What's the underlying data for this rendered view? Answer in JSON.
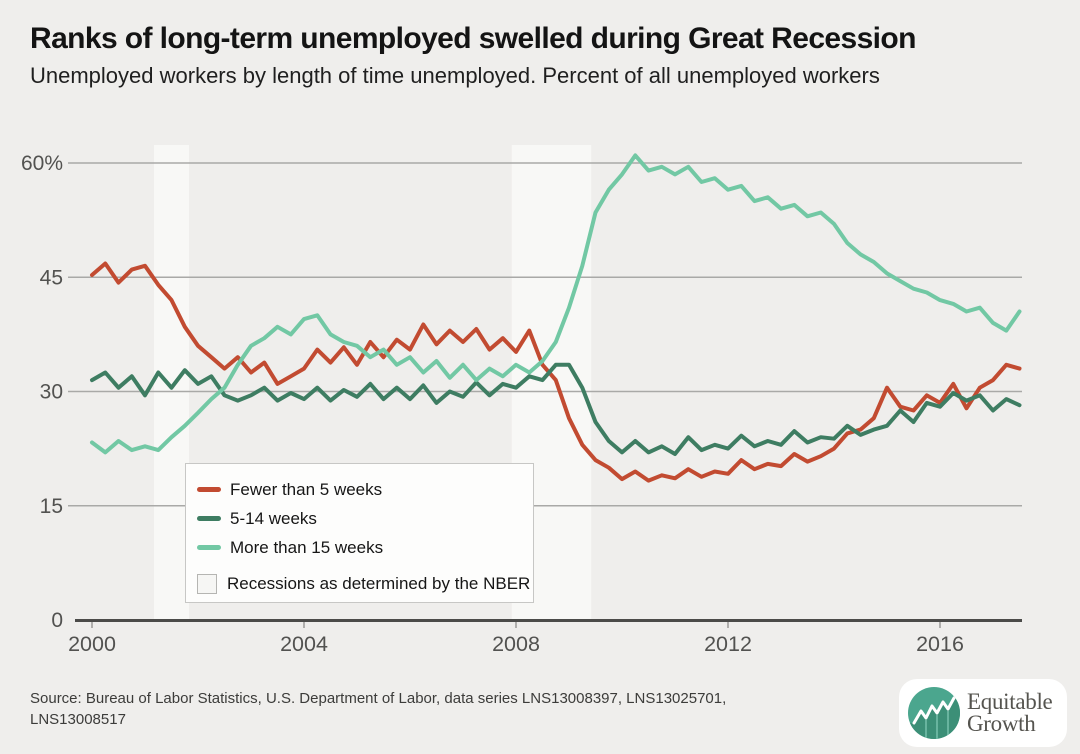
{
  "header": {
    "title": "Ranks of long-term unemployed swelled during Great Recession",
    "subtitle": "Unemployed workers by length of time unemployed. Percent of all unemployed workers"
  },
  "chart_data": {
    "type": "line",
    "title": "Ranks of long-term unemployed swelled during Great Recession",
    "subtitle": "Unemployed workers by length of time unemployed. Percent of all unemployed workers",
    "x_start": 2000.0,
    "x_step": 0.25,
    "x_axis": {
      "ticks": [
        2000,
        2004,
        2008,
        2012,
        2016
      ],
      "tick_labels": [
        "2000",
        "2004",
        "2008",
        "2012",
        "2016"
      ],
      "range": [
        2000,
        2017.5
      ]
    },
    "y_axis": {
      "ticks": [
        60,
        45,
        30,
        15,
        0
      ],
      "tick_labels": [
        "60%",
        "45",
        "30",
        "15",
        "0"
      ],
      "range": [
        0,
        62
      ],
      "unit": "percent"
    },
    "grid": "horizontal-only",
    "legend_position": "inside-bottom-left",
    "series": [
      {
        "name": "Fewer than 5 weeks",
        "color": "#c24b31",
        "values": [
          45.3,
          46.8,
          44.3,
          46.0,
          46.5,
          44.0,
          42.0,
          38.5,
          36.0,
          34.5,
          33.0,
          34.5,
          32.5,
          33.8,
          31.0,
          32.0,
          33.0,
          35.5,
          33.8,
          35.8,
          33.5,
          36.5,
          34.5,
          36.8,
          35.5,
          38.8,
          36.2,
          38.0,
          36.5,
          38.2,
          35.5,
          37.0,
          35.2,
          38.0,
          33.5,
          31.5,
          26.5,
          23.0,
          21.0,
          20.0,
          18.5,
          19.5,
          18.3,
          19.0,
          18.6,
          19.8,
          18.8,
          19.5,
          19.2,
          21.0,
          19.8,
          20.5,
          20.2,
          21.8,
          20.8,
          21.5,
          22.5,
          24.5,
          25.0,
          26.5,
          30.5,
          28.0,
          27.5,
          29.5,
          28.5,
          31.0,
          27.8,
          30.5,
          31.5,
          33.5,
          33.0
        ]
      },
      {
        "name": "5-14 weeks",
        "color": "#3e7d62",
        "values": [
          31.5,
          32.5,
          30.5,
          32.0,
          29.5,
          32.5,
          30.5,
          32.8,
          31.0,
          32.0,
          29.5,
          28.8,
          29.5,
          30.5,
          28.8,
          29.8,
          29.0,
          30.5,
          28.8,
          30.2,
          29.3,
          31.0,
          29.0,
          30.5,
          29.0,
          30.8,
          28.5,
          30.0,
          29.3,
          31.2,
          29.5,
          31.0,
          30.5,
          32.0,
          31.5,
          33.5,
          33.5,
          30.5,
          26.0,
          23.5,
          22.0,
          23.5,
          22.0,
          22.8,
          21.8,
          24.0,
          22.3,
          23.0,
          22.5,
          24.2,
          22.8,
          23.5,
          23.0,
          24.8,
          23.3,
          24.0,
          23.8,
          25.5,
          24.3,
          25.0,
          25.5,
          27.5,
          26.0,
          28.5,
          28.0,
          29.8,
          28.8,
          29.5,
          27.5,
          29.0,
          28.2
        ]
      },
      {
        "name": "More than 15 weeks",
        "color": "#72c8a4",
        "values": [
          23.3,
          22.0,
          23.5,
          22.3,
          22.8,
          22.3,
          24.0,
          25.5,
          27.2,
          29.0,
          30.5,
          33.5,
          36.0,
          37.0,
          38.5,
          37.5,
          39.5,
          40.0,
          37.5,
          36.5,
          36.0,
          34.5,
          35.5,
          33.5,
          34.5,
          32.5,
          34.0,
          31.8,
          33.5,
          31.5,
          33.0,
          32.0,
          33.5,
          32.5,
          34.0,
          36.5,
          41.0,
          46.5,
          53.5,
          56.5,
          58.5,
          61.0,
          59.0,
          59.5,
          58.5,
          59.5,
          57.5,
          58.0,
          56.5,
          57.0,
          55.0,
          55.5,
          54.0,
          54.5,
          53.0,
          53.5,
          52.0,
          49.5,
          48.0,
          47.0,
          45.5,
          44.5,
          43.5,
          43.0,
          42.0,
          41.5,
          40.5,
          41.0,
          39.0,
          38.0,
          40.5
        ]
      }
    ],
    "recession_bands": [
      {
        "start": 2001.17,
        "end": 2001.83
      },
      {
        "start": 2007.92,
        "end": 2009.42
      }
    ],
    "legend": {
      "nber_label": "Recessions as determined by the NBER"
    },
    "style": {
      "background": "#efeeec",
      "band_fill": "#f8f8f6",
      "gridline_color": "#a9a9a7",
      "axis_color": "#4b4b49",
      "tick_text_color": "#525250",
      "line_width": 4
    }
  },
  "footer": {
    "source": "Source: Bureau of Labor Statistics, U.S. Department of Labor, data series LNS13008397, LNS13025701, LNS13008517",
    "logo": {
      "line1": "Equitable",
      "line2": "Growth",
      "icon": "growth-chart-circle-icon",
      "circle_color": "#4ba68e",
      "mountain_color": "#3c8f77"
    }
  }
}
